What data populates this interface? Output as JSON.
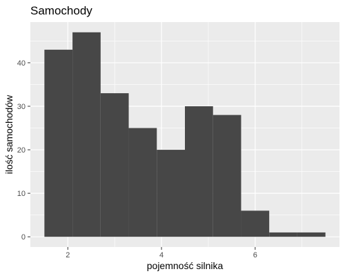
{
  "chart_data": {
    "type": "bar",
    "title": "Samochody",
    "xlabel": "pojemność silnika",
    "ylabel": "ilość samochodów",
    "bins": [
      {
        "x0": 1.5,
        "x1": 2.1,
        "count": 43
      },
      {
        "x0": 2.1,
        "x1": 2.7,
        "count": 47
      },
      {
        "x0": 2.7,
        "x1": 3.3,
        "count": 33
      },
      {
        "x0": 3.3,
        "x1": 3.9,
        "count": 25
      },
      {
        "x0": 3.9,
        "x1": 4.5,
        "count": 20
      },
      {
        "x0": 4.5,
        "x1": 5.1,
        "count": 30
      },
      {
        "x0": 5.1,
        "x1": 5.7,
        "count": 28
      },
      {
        "x0": 5.7,
        "x1": 6.3,
        "count": 6
      },
      {
        "x0": 6.3,
        "x1": 6.9,
        "count": 1
      },
      {
        "x0": 6.9,
        "x1": 7.5,
        "count": 1
      }
    ],
    "xlim": [
      1.2,
      7.8
    ],
    "ylim": [
      -2.35,
      49.35
    ],
    "x_ticks": [
      2,
      4,
      6
    ],
    "y_ticks": [
      0,
      10,
      20,
      30,
      40
    ],
    "grid": true,
    "legend": "none",
    "colors": {
      "panel": "#ebebeb",
      "grid": "#ffffff",
      "bar": "#474747",
      "tick": "#333333"
    }
  }
}
